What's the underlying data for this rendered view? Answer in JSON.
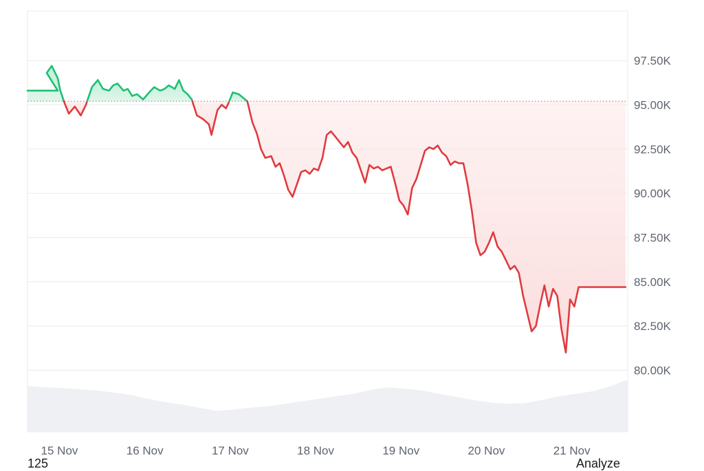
{
  "chart_data": {
    "type": "line",
    "title": "",
    "xlabel": "",
    "ylabel": "",
    "baseline": 95200,
    "ylim": [
      77300,
      100300
    ],
    "x_ticks": [
      "15 Nov",
      "16 Nov",
      "17 Nov",
      "18 Nov",
      "19 Nov",
      "20 Nov",
      "21 Nov"
    ],
    "y_ticks": [
      {
        "value": 97500,
        "label": "97.50K"
      },
      {
        "value": 95000,
        "label": "95.00K"
      },
      {
        "value": 92500,
        "label": "92.50K"
      },
      {
        "value": 90000,
        "label": "90.00K"
      },
      {
        "value": 87500,
        "label": "87.50K"
      },
      {
        "value": 85000,
        "label": "85.00K"
      },
      {
        "value": 82500,
        "label": "82.50K"
      },
      {
        "value": 80000,
        "label": "80.00K"
      }
    ],
    "colors": {
      "up": "#1fbf75",
      "down": "#e03a3e",
      "up_fill": "#bfeed6",
      "down_fill": "#fbdcdc",
      "volume": "#eef0f3",
      "grid": "#e9ebef",
      "baseline": "#b8906a"
    },
    "grid": true,
    "series": [
      {
        "x": [
          -0.2,
          -0.14,
          -0.1,
          -0.05,
          0.0,
          -0.2,
          -0.13,
          -0.07,
          0.0,
          0.03,
          0.08,
          0.13,
          0.2,
          0.27,
          0.33,
          0.4,
          0.47,
          0.53,
          0.6,
          0.65,
          0.7,
          0.77,
          0.82,
          0.87,
          0.93,
          1.0,
          1.07,
          1.13,
          1.2,
          1.25,
          1.3,
          1.37,
          1.42,
          1.47,
          1.52,
          1.57,
          1.63,
          1.7,
          1.77,
          1.8,
          1.83,
          1.87,
          1.92,
          1.97,
          2.0,
          2.05,
          2.12,
          2.17,
          2.22,
          2.28,
          2.33,
          2.38,
          2.43,
          2.5,
          2.55,
          2.6,
          2.65,
          2.7,
          2.75,
          2.8,
          2.85,
          2.9,
          2.95,
          3.0,
          3.05,
          3.1,
          3.15,
          3.2,
          3.25,
          3.3,
          3.35,
          3.4,
          3.45,
          3.5,
          3.55,
          3.6,
          3.65,
          3.7,
          3.75,
          3.8,
          3.85,
          3.9,
          3.95,
          4.0,
          4.05,
          4.1,
          4.15,
          4.2,
          4.25,
          4.3,
          4.35,
          4.4,
          4.45,
          4.5,
          4.55,
          4.6,
          4.65,
          4.7,
          4.75,
          4.8,
          4.85,
          4.9,
          4.95,
          5.0,
          5.05,
          5.1,
          5.15,
          5.2,
          5.25,
          5.3,
          5.35,
          5.4,
          5.45,
          5.5,
          5.55,
          5.6,
          5.65,
          5.7,
          5.75,
          5.8,
          5.85,
          5.9,
          5.95,
          6.0,
          6.05,
          6.1,
          6.15,
          6.2,
          6.25,
          6.3,
          6.35,
          6.4,
          6.45,
          6.5,
          6.55,
          6.6,
          6.65
        ],
        "values": [
          95300,
          96800,
          97200,
          96500,
          95800,
          95300,
          96800,
          97200,
          96500,
          95800,
          95100,
          94500,
          94900,
          94400,
          95000,
          96000,
          96400,
          95900,
          95800,
          96100,
          96200,
          95800,
          95900,
          95500,
          95600,
          95300,
          95700,
          96000,
          95800,
          95900,
          96100,
          95900,
          96400,
          95800,
          95600,
          95300,
          94400,
          94200,
          93900,
          93300,
          93900,
          94700,
          95000,
          94800,
          95100,
          95700,
          95600,
          95400,
          95200,
          94000,
          93400,
          92500,
          92000,
          92100,
          91500,
          91700,
          91000,
          90200,
          89800,
          90500,
          91200,
          91300,
          91100,
          91400,
          91300,
          92000,
          93300,
          93500,
          93200,
          92900,
          92600,
          92900,
          92300,
          92000,
          91300,
          90600,
          91600,
          91400,
          91500,
          91300,
          91400,
          91500,
          90600,
          89600,
          89300,
          88800,
          90300,
          90800,
          91600,
          92400,
          92600,
          92500,
          92700,
          92300,
          92100,
          91600,
          91800,
          91700,
          91700,
          90500,
          89000,
          87200,
          86500,
          86700,
          87200,
          87800,
          87000,
          86700,
          86200,
          85700,
          85900,
          85500,
          84200,
          83200,
          82200,
          82500,
          83700,
          84800,
          83600,
          84600,
          84200,
          82300,
          81000,
          84000,
          83600,
          84700,
          84700,
          84700,
          84700,
          84700,
          84700,
          84700,
          84700,
          84700,
          84700,
          84700,
          84700
        ]
      }
    ],
    "volume_note": "volume silhouette drawn below price pane",
    "volume": [
      0.72,
      0.7,
      0.69,
      0.67,
      0.65,
      0.62,
      0.58,
      0.52,
      0.47,
      0.43,
      0.38,
      0.33,
      0.35,
      0.38,
      0.4,
      0.44,
      0.48,
      0.52,
      0.56,
      0.6,
      0.66,
      0.7,
      0.68,
      0.65,
      0.6,
      0.55,
      0.5,
      0.46,
      0.44,
      0.45,
      0.5,
      0.56,
      0.6,
      0.64,
      0.72,
      0.82
    ]
  },
  "footer": {
    "left": "125",
    "right": "Analyze"
  }
}
